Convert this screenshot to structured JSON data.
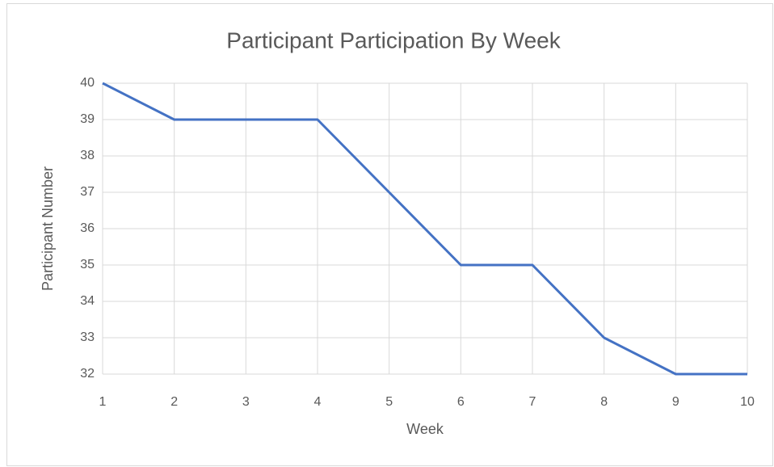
{
  "chart_data": {
    "type": "line",
    "title": "Participant Participation By Week",
    "x_label": "Week",
    "y_label": "Participant Number",
    "x": [
      1,
      2,
      3,
      4,
      5,
      6,
      7,
      8,
      9,
      10
    ],
    "series": [
      {
        "name": "Participant Number",
        "color": "#4472c4",
        "values": [
          40,
          39,
          39,
          39,
          37,
          35,
          35,
          33,
          32,
          32
        ]
      }
    ],
    "xlim": [
      1,
      10
    ],
    "xticks": [
      1,
      2,
      3,
      4,
      5,
      6,
      7,
      8,
      9,
      10
    ],
    "ylim": [
      32,
      40
    ],
    "yticks": [
      32,
      33,
      34,
      35,
      36,
      37,
      38,
      39,
      40
    ],
    "grid": true
  }
}
